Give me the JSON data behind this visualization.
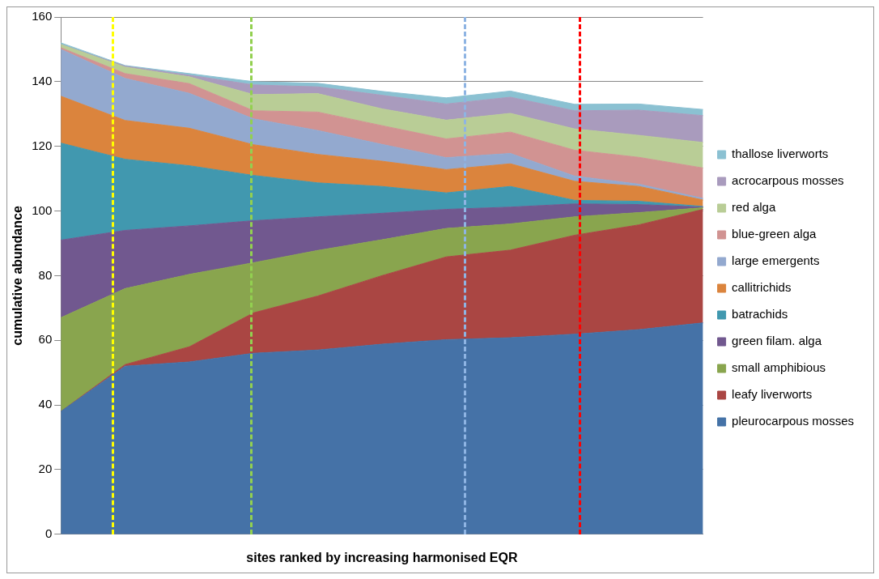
{
  "chart_data": {
    "type": "area",
    "xlabel": "sites ranked by increasing harmonised EQR",
    "ylabel": "cumulative abundance",
    "categories": [
      null,
      null,
      null,
      null,
      null,
      null,
      null,
      null,
      null,
      null,
      null
    ],
    "ylim": [
      0,
      160
    ],
    "yticks": [
      0,
      20,
      40,
      60,
      80,
      100,
      120,
      140,
      160
    ],
    "tick_labels": "y",
    "stacked": true,
    "grid": "y",
    "legend": "right",
    "marker": "none",
    "series": [
      {
        "name": "pleurocarpous mosses",
        "color": "#4572a7",
        "values": [
          38,
          52,
          53.3,
          56,
          57,
          58.8,
          60.2,
          60.8,
          61.9,
          63.3,
          65.4
        ]
      },
      {
        "name": "leafy liverworts",
        "color": "#aa4643",
        "values": [
          0,
          0.5,
          4.7,
          12.5,
          16.7,
          21.2,
          25.6,
          27.1,
          30.6,
          32.4,
          35.1
        ]
      },
      {
        "name": "small amphibious",
        "color": "#89a54e",
        "values": [
          29,
          23.5,
          22.4,
          15.5,
          14.1,
          11.1,
          8.8,
          8.1,
          5.7,
          3.8,
          0.5
        ]
      },
      {
        "name": "green filam. alga",
        "color": "#71588f",
        "values": [
          24,
          18,
          15,
          13,
          10.4,
          8.2,
          5.9,
          5.2,
          4,
          2.5,
          0.2
        ]
      },
      {
        "name": "batrachids",
        "color": "#4198af",
        "values": [
          30,
          22,
          18.6,
          14,
          10.5,
          8.3,
          5.1,
          6.4,
          1.1,
          1,
          0.2
        ]
      },
      {
        "name": "callitrichids",
        "color": "#db843d",
        "values": [
          14.5,
          12,
          11.6,
          9.5,
          8.8,
          7.8,
          7.2,
          7,
          5.9,
          4.6,
          2
        ]
      },
      {
        "name": "large emergents",
        "color": "#93a9cf",
        "values": [
          14.5,
          13,
          10.8,
          8,
          7.4,
          5.2,
          3.7,
          3.2,
          1.6,
          0.7,
          0.5
        ]
      },
      {
        "name": "blue-green alga",
        "color": "#d19392",
        "values": [
          0.5,
          1.5,
          3,
          2.5,
          5.7,
          5.8,
          5.8,
          6.6,
          8,
          8.3,
          9.4
        ]
      },
      {
        "name": "red alga",
        "color": "#b9cd96",
        "values": [
          1,
          2,
          2.1,
          5,
          5.7,
          5.2,
          5.8,
          5.8,
          6.6,
          6.8,
          7.9
        ]
      },
      {
        "name": "acrocarpous mosses",
        "color": "#a99bbd",
        "values": [
          0,
          0.3,
          0.5,
          3,
          2.1,
          4.2,
          5,
          5,
          5.6,
          7.8,
          8.3
        ]
      },
      {
        "name": "thallose liverworts",
        "color": "#8bc1d2",
        "values": [
          0.5,
          0.2,
          0.5,
          1,
          1.1,
          1.2,
          1.9,
          1.9,
          2,
          1.9,
          1.9
        ]
      }
    ]
  }
}
